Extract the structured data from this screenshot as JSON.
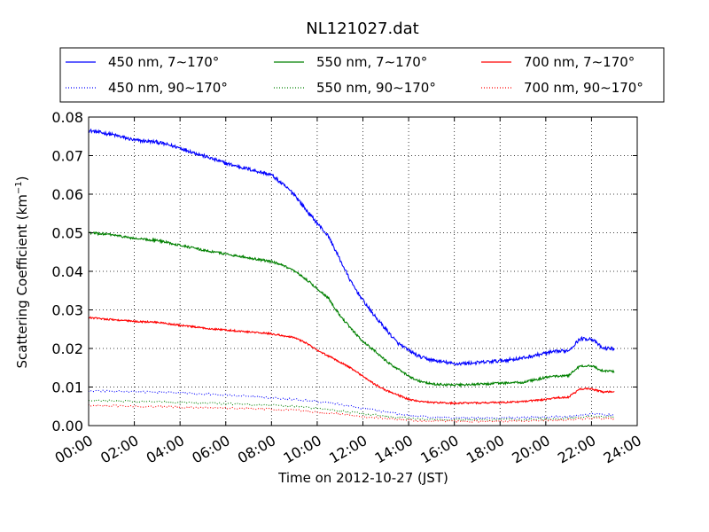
{
  "chart_data": {
    "type": "line",
    "title": "NL121027.dat",
    "xlabel": "Time on 2012-10-27 (JST)",
    "ylabel_main": "Scattering Coefficient (km",
    "ylabel_sup": "−1",
    "ylabel_end": ")",
    "xlim": [
      "00:00",
      "24:00"
    ],
    "ylim": [
      0,
      0.08
    ],
    "xticks": [
      "00:00",
      "02:00",
      "04:00",
      "06:00",
      "08:00",
      "10:00",
      "12:00",
      "14:00",
      "16:00",
      "18:00",
      "20:00",
      "22:00",
      "24:00"
    ],
    "yticks": [
      "0.00",
      "0.01",
      "0.02",
      "0.03",
      "0.04",
      "0.05",
      "0.06",
      "0.07",
      "0.08"
    ],
    "grid": true,
    "legend_position": "top, above plot, 3 columns",
    "series": [
      {
        "name": "450 nm, 7∼170°",
        "color": "#0000ff",
        "style": "solid",
        "x": [
          "00:00",
          "01:00",
          "02:00",
          "03:00",
          "04:00",
          "05:00",
          "06:00",
          "07:00",
          "08:00",
          "08:30",
          "09:00",
          "09:30",
          "10:00",
          "10:30",
          "11:00",
          "11:30",
          "12:00",
          "12:30",
          "13:00",
          "13:30",
          "14:00",
          "14:30",
          "15:00",
          "16:00",
          "17:00",
          "18:00",
          "19:00",
          "20:00",
          "20:30",
          "21:00",
          "21:30",
          "22:00",
          "22:30",
          "23:00"
        ],
        "values": [
          0.0765,
          0.0755,
          0.074,
          0.0735,
          0.072,
          0.07,
          0.068,
          0.0665,
          0.065,
          0.0625,
          0.06,
          0.056,
          0.0525,
          0.049,
          0.043,
          0.037,
          0.0325,
          0.0285,
          0.025,
          0.0215,
          0.0195,
          0.0178,
          0.017,
          0.016,
          0.0163,
          0.0168,
          0.0175,
          0.0188,
          0.0192,
          0.0195,
          0.0225,
          0.0225,
          0.02,
          0.02
        ]
      },
      {
        "name": "550 nm, 7∼170°",
        "color": "#008000",
        "style": "solid",
        "x": [
          "00:00",
          "01:00",
          "02:00",
          "03:00",
          "04:00",
          "05:00",
          "06:00",
          "07:00",
          "08:00",
          "08:30",
          "09:00",
          "09:30",
          "10:00",
          "10:30",
          "11:00",
          "11:30",
          "12:00",
          "12:30",
          "13:00",
          "13:30",
          "14:00",
          "14:30",
          "15:00",
          "16:00",
          "17:00",
          "18:00",
          "19:00",
          "20:00",
          "20:30",
          "21:00",
          "21:30",
          "22:00",
          "22:30",
          "23:00"
        ],
        "values": [
          0.05,
          0.0495,
          0.0485,
          0.048,
          0.0468,
          0.0455,
          0.0445,
          0.0435,
          0.0425,
          0.0415,
          0.04,
          0.038,
          0.0355,
          0.033,
          0.0285,
          0.025,
          0.0218,
          0.0195,
          0.0168,
          0.0148,
          0.0128,
          0.0115,
          0.0108,
          0.0105,
          0.0107,
          0.011,
          0.0112,
          0.0125,
          0.0128,
          0.013,
          0.0155,
          0.0155,
          0.0142,
          0.014
        ]
      },
      {
        "name": "700 nm, 7∼170°",
        "color": "#ff0000",
        "style": "solid",
        "x": [
          "00:00",
          "01:00",
          "02:00",
          "03:00",
          "04:00",
          "05:00",
          "06:00",
          "07:00",
          "08:00",
          "08:30",
          "09:00",
          "09:30",
          "10:00",
          "10:30",
          "11:00",
          "11:30",
          "12:00",
          "12:30",
          "13:00",
          "13:30",
          "14:00",
          "14:30",
          "15:00",
          "16:00",
          "17:00",
          "18:00",
          "19:00",
          "20:00",
          "20:30",
          "21:00",
          "21:30",
          "22:00",
          "22:30",
          "23:00"
        ],
        "values": [
          0.028,
          0.0275,
          0.027,
          0.0268,
          0.026,
          0.0253,
          0.0248,
          0.0243,
          0.0238,
          0.0233,
          0.0228,
          0.0215,
          0.0195,
          0.018,
          0.0165,
          0.0148,
          0.0128,
          0.0108,
          0.0092,
          0.008,
          0.0068,
          0.0063,
          0.006,
          0.0058,
          0.0059,
          0.006,
          0.0062,
          0.0068,
          0.0072,
          0.0074,
          0.0095,
          0.0095,
          0.0087,
          0.0088
        ]
      },
      {
        "name": "450 nm, 90∼170°",
        "color": "#0000ff",
        "style": "dotted",
        "x": [
          "00:00",
          "02:00",
          "04:00",
          "06:00",
          "08:00",
          "09:00",
          "10:00",
          "11:00",
          "12:00",
          "13:00",
          "14:00",
          "15:00",
          "16:00",
          "18:00",
          "20:00",
          "21:00",
          "22:00",
          "23:00"
        ],
        "values": [
          0.009,
          0.0088,
          0.0085,
          0.008,
          0.0072,
          0.0068,
          0.0063,
          0.0055,
          0.0045,
          0.0035,
          0.0026,
          0.0022,
          0.002,
          0.002,
          0.0022,
          0.0024,
          0.003,
          0.0027
        ]
      },
      {
        "name": "550 nm, 90∼170°",
        "color": "#008000",
        "style": "dotted",
        "x": [
          "00:00",
          "02:00",
          "04:00",
          "06:00",
          "08:00",
          "09:00",
          "10:00",
          "11:00",
          "12:00",
          "13:00",
          "14:00",
          "15:00",
          "16:00",
          "18:00",
          "20:00",
          "21:00",
          "22:00",
          "23:00"
        ],
        "values": [
          0.0065,
          0.0063,
          0.006,
          0.0057,
          0.0053,
          0.005,
          0.0045,
          0.0038,
          0.0031,
          0.0024,
          0.0019,
          0.0016,
          0.0015,
          0.0015,
          0.0017,
          0.0019,
          0.0025,
          0.0022
        ]
      },
      {
        "name": "700 nm, 90∼170°",
        "color": "#ff0000",
        "style": "dotted",
        "x": [
          "00:00",
          "02:00",
          "04:00",
          "06:00",
          "08:00",
          "09:00",
          "10:00",
          "11:00",
          "12:00",
          "13:00",
          "14:00",
          "15:00",
          "16:00",
          "18:00",
          "20:00",
          "21:00",
          "22:00",
          "23:00"
        ],
        "values": [
          0.0052,
          0.005,
          0.0048,
          0.0046,
          0.0043,
          0.004,
          0.0035,
          0.003,
          0.0024,
          0.0018,
          0.0014,
          0.0012,
          0.0011,
          0.0011,
          0.0013,
          0.0015,
          0.002,
          0.0017
        ]
      }
    ]
  }
}
